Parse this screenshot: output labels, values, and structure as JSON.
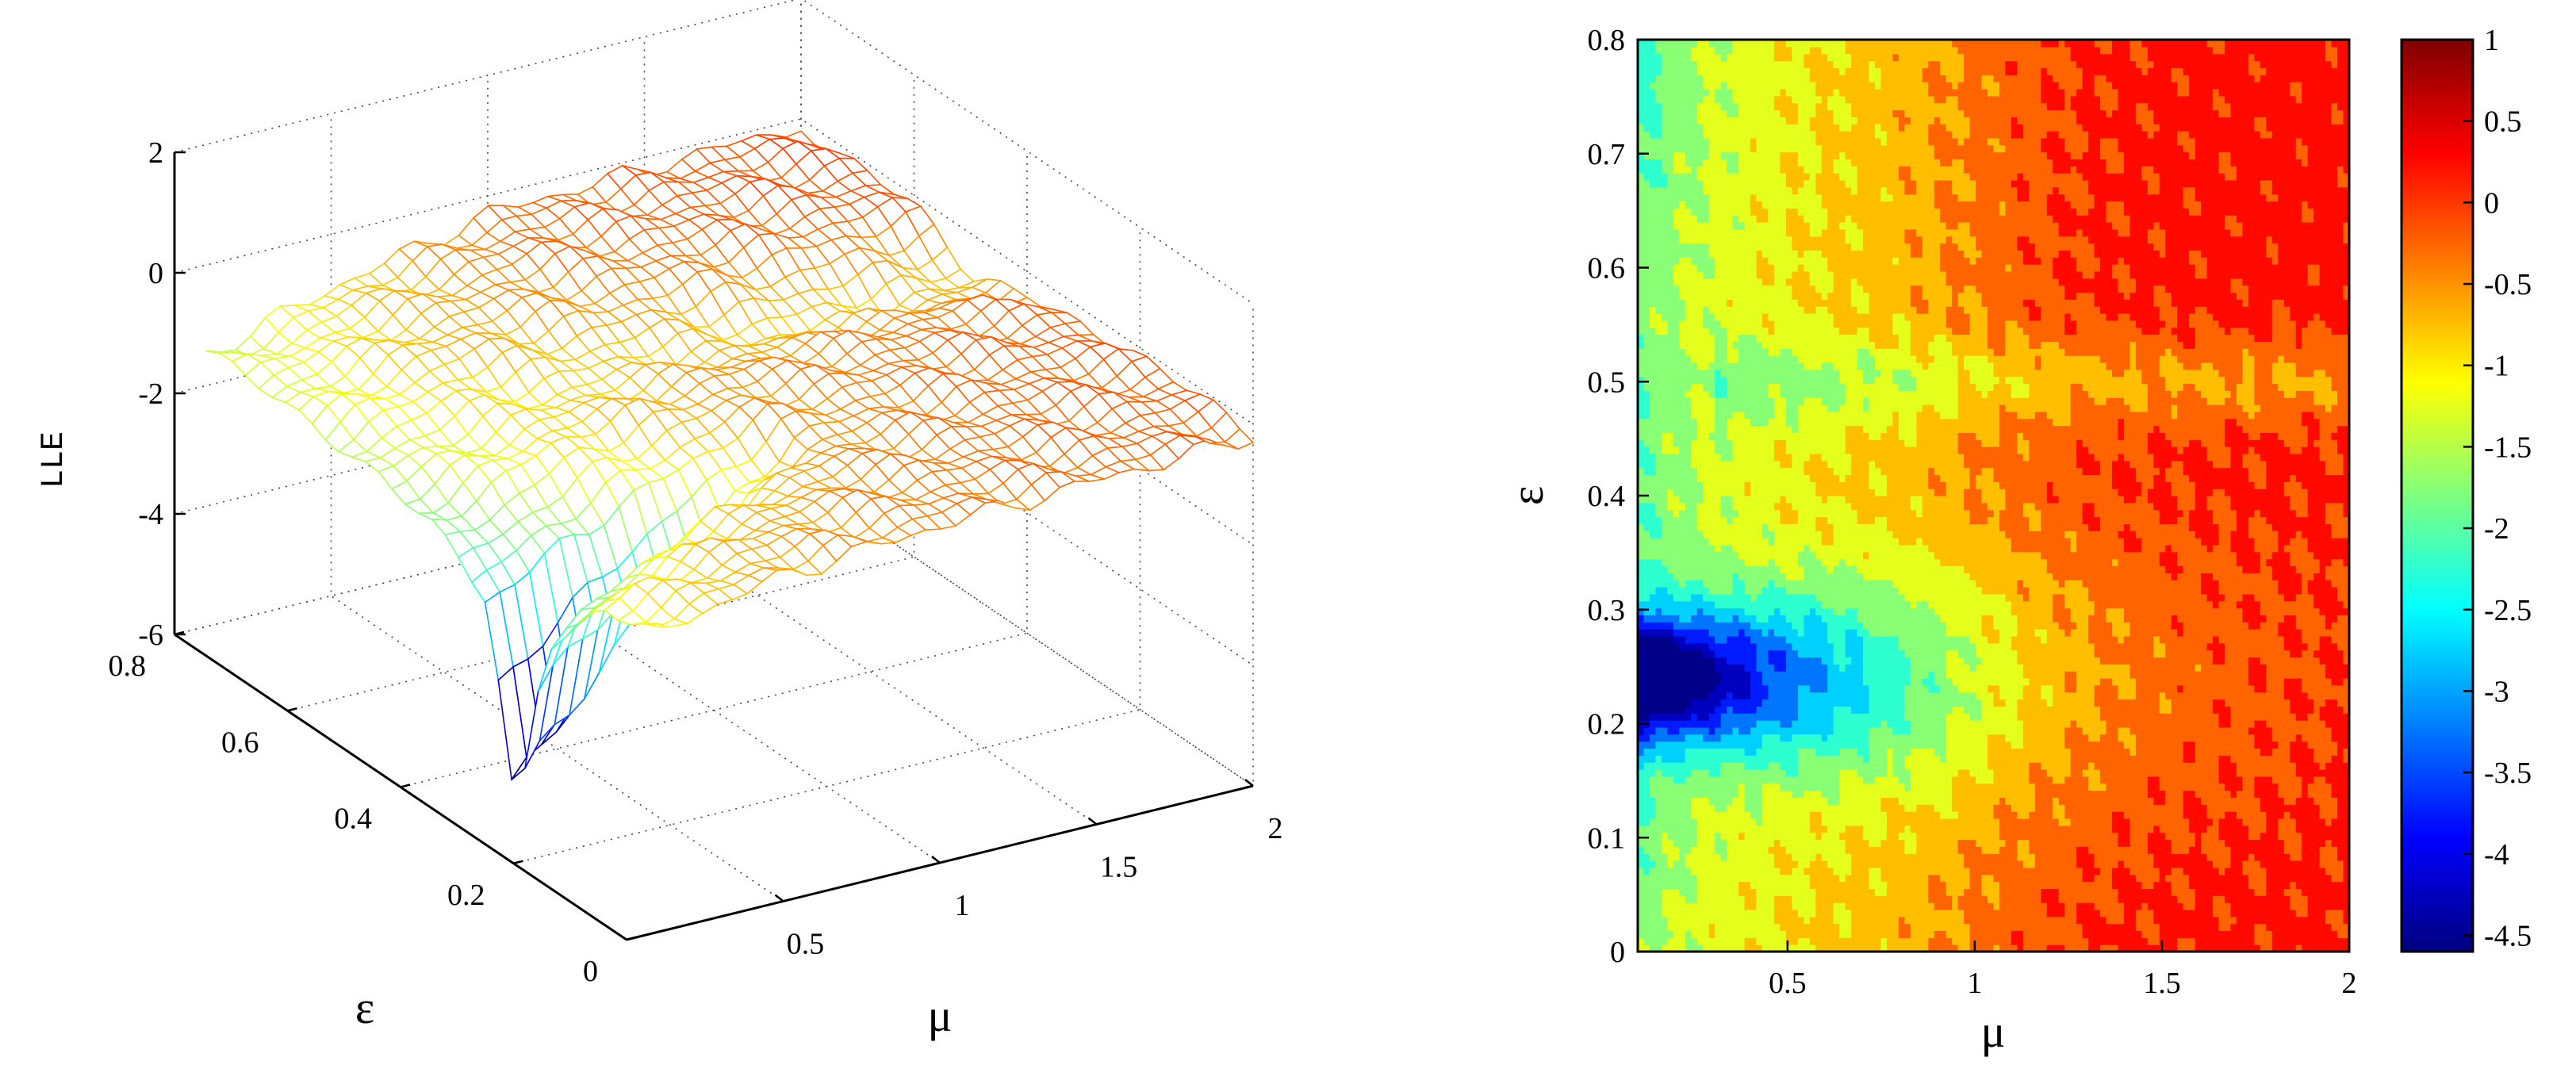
{
  "chart_data": [
    {
      "type": "surface",
      "xlabel": "μ",
      "ylabel": "ε",
      "zlabel": "LLE",
      "xlim": [
        0,
        2
      ],
      "ylim": [
        0,
        0.8
      ],
      "zlim": [
        -6,
        2
      ],
      "x_ticks": [
        "0.5",
        "1",
        "1.5",
        "2"
      ],
      "y_ticks": [
        "0",
        "0.2",
        "0.4",
        "0.6",
        "0.8"
      ],
      "z_ticks": [
        "-6",
        "-4",
        "-2",
        "0",
        "2"
      ],
      "grid": true,
      "colormap": "jet",
      "surface_samples": {
        "mu": [
          0.1,
          0.5,
          1.0,
          1.5,
          2.0
        ],
        "eps": [
          0.0,
          0.1,
          0.2,
          0.25,
          0.3,
          0.4,
          0.5,
          0.6,
          0.7,
          0.8
        ],
        "lle": [
          [
            -1.0,
            -0.6,
            -0.4,
            -0.3,
            -0.2
          ],
          [
            -1.2,
            -0.7,
            -0.4,
            -0.3,
            -0.2
          ],
          [
            -2.5,
            -1.2,
            -0.5,
            -0.3,
            -0.2
          ],
          [
            -5.8,
            -3.0,
            -0.6,
            -0.3,
            -0.2
          ],
          [
            -2.5,
            -1.5,
            -0.5,
            -0.3,
            -0.2
          ],
          [
            -1.8,
            -0.9,
            -0.5,
            -0.4,
            -0.3
          ],
          [
            -1.5,
            -1.0,
            -0.8,
            -0.9,
            -0.8
          ],
          [
            -1.4,
            -0.7,
            -0.5,
            -0.3,
            -0.2
          ],
          [
            -1.4,
            -0.8,
            -0.3,
            -0.2,
            -0.1
          ],
          [
            -1.5,
            -0.9,
            -0.3,
            -0.2,
            -0.1
          ]
        ]
      }
    },
    {
      "type": "contour",
      "xlabel": "μ",
      "ylabel": "ε",
      "xlim": [
        0.1,
        2
      ],
      "ylim": [
        0,
        0.8
      ],
      "x_ticks": [
        "0.5",
        "1",
        "1.5",
        "2"
      ],
      "y_ticks": [
        "0",
        "0.1",
        "0.2",
        "0.3",
        "0.4",
        "0.5",
        "0.6",
        "0.7",
        "0.8"
      ],
      "colorbar": {
        "range": [
          -4.6,
          1
        ],
        "ticks": [
          "1",
          "0.5",
          "0",
          "-0.5",
          "-1",
          "-1.5",
          "-2",
          "-2.5",
          "-3",
          "-3.5",
          "-4",
          "-4.5"
        ]
      },
      "colormap": "jet",
      "levels": [
        -4.5,
        -4,
        -3.5,
        -3,
        -2.5,
        -2,
        -1.5,
        -1,
        -0.5,
        0,
        0.5
      ],
      "regions": [
        {
          "label": "deep minimum near mu=0.1, eps=0.24",
          "value": -4.5
        },
        {
          "label": "low-mu band",
          "value": -1.5
        },
        {
          "label": "central plateau",
          "value": -0.5
        },
        {
          "label": "high-mu region",
          "value": 0
        }
      ]
    }
  ]
}
